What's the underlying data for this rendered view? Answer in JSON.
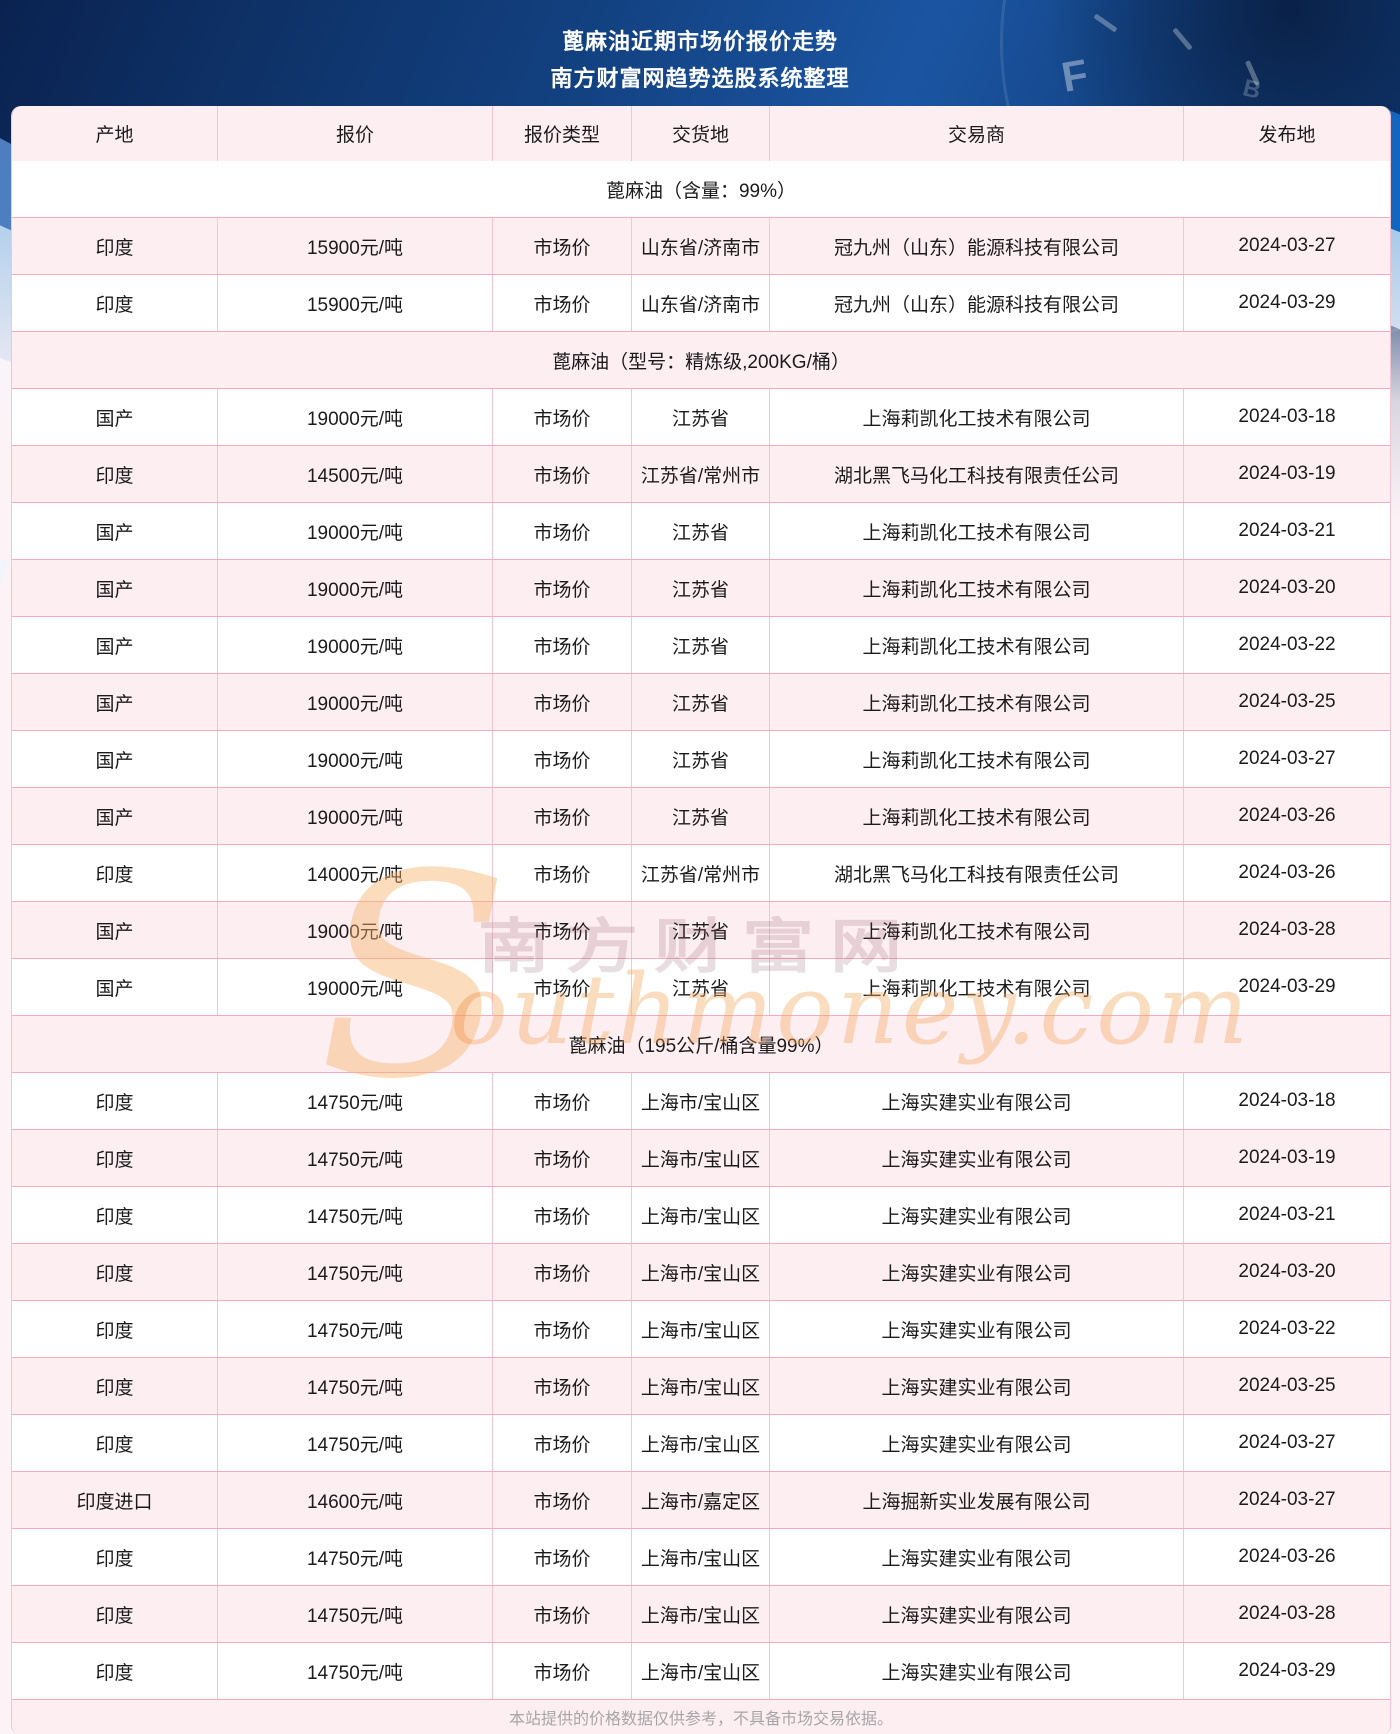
{
  "header": {
    "title_line1": "蓖麻油近期市场价报价走势",
    "title_line2": "南方财富网趋势选股系统整理"
  },
  "watermark": {
    "s": "S",
    "cjk": "南方财富网",
    "script": "outhmoney.com"
  },
  "footer": {
    "note": "本站提供的价格数据仅供参考，不具备市场交易依据。"
  },
  "colors": {
    "header_blue_dark": "#0a2250",
    "header_blue_mid": "#1b55a2",
    "row_pink": "#fdeef2",
    "row_white": "#ffffff",
    "line_pink": "#f2abc0",
    "page_bg": "#fdf3f6",
    "watermark_orange": "#f6b46e",
    "footer_text_gray": "#a6a6a6"
  },
  "table": {
    "columns": [
      "产地",
      "报价",
      "报价类型",
      "交货地",
      "交易商",
      "发布地"
    ],
    "rows": [
      {
        "type": "section",
        "label": "蓖麻油（含量：99%）"
      },
      {
        "type": "data",
        "cells": [
          "印度",
          "15900元/吨",
          "市场价",
          "山东省/济南市",
          "冠九州（山东）能源科技有限公司",
          "2024-03-27"
        ]
      },
      {
        "type": "data",
        "cells": [
          "印度",
          "15900元/吨",
          "市场价",
          "山东省/济南市",
          "冠九州（山东）能源科技有限公司",
          "2024-03-29"
        ]
      },
      {
        "type": "section",
        "label": "蓖麻油（型号：精炼级,200KG/桶）"
      },
      {
        "type": "data",
        "cells": [
          "国产",
          "19000元/吨",
          "市场价",
          "江苏省",
          "上海莉凯化工技术有限公司",
          "2024-03-18"
        ]
      },
      {
        "type": "data",
        "cells": [
          "印度",
          "14500元/吨",
          "市场价",
          "江苏省/常州市",
          "湖北黑飞马化工科技有限责任公司",
          "2024-03-19"
        ]
      },
      {
        "type": "data",
        "cells": [
          "国产",
          "19000元/吨",
          "市场价",
          "江苏省",
          "上海莉凯化工技术有限公司",
          "2024-03-21"
        ]
      },
      {
        "type": "data",
        "cells": [
          "国产",
          "19000元/吨",
          "市场价",
          "江苏省",
          "上海莉凯化工技术有限公司",
          "2024-03-20"
        ]
      },
      {
        "type": "data",
        "cells": [
          "国产",
          "19000元/吨",
          "市场价",
          "江苏省",
          "上海莉凯化工技术有限公司",
          "2024-03-22"
        ]
      },
      {
        "type": "data",
        "cells": [
          "国产",
          "19000元/吨",
          "市场价",
          "江苏省",
          "上海莉凯化工技术有限公司",
          "2024-03-25"
        ]
      },
      {
        "type": "data",
        "cells": [
          "国产",
          "19000元/吨",
          "市场价",
          "江苏省",
          "上海莉凯化工技术有限公司",
          "2024-03-27"
        ]
      },
      {
        "type": "data",
        "cells": [
          "国产",
          "19000元/吨",
          "市场价",
          "江苏省",
          "上海莉凯化工技术有限公司",
          "2024-03-26"
        ]
      },
      {
        "type": "data",
        "cells": [
          "印度",
          "14000元/吨",
          "市场价",
          "江苏省/常州市",
          "湖北黑飞马化工科技有限责任公司",
          "2024-03-26"
        ]
      },
      {
        "type": "data",
        "cells": [
          "国产",
          "19000元/吨",
          "市场价",
          "江苏省",
          "上海莉凯化工技术有限公司",
          "2024-03-28"
        ]
      },
      {
        "type": "data",
        "cells": [
          "国产",
          "19000元/吨",
          "市场价",
          "江苏省",
          "上海莉凯化工技术有限公司",
          "2024-03-29"
        ]
      },
      {
        "type": "section",
        "label": "蓖麻油（195公斤/桶含量99%）"
      },
      {
        "type": "data",
        "cells": [
          "印度",
          "14750元/吨",
          "市场价",
          "上海市/宝山区",
          "上海实建实业有限公司",
          "2024-03-18"
        ]
      },
      {
        "type": "data",
        "cells": [
          "印度",
          "14750元/吨",
          "市场价",
          "上海市/宝山区",
          "上海实建实业有限公司",
          "2024-03-19"
        ]
      },
      {
        "type": "data",
        "cells": [
          "印度",
          "14750元/吨",
          "市场价",
          "上海市/宝山区",
          "上海实建实业有限公司",
          "2024-03-21"
        ]
      },
      {
        "type": "data",
        "cells": [
          "印度",
          "14750元/吨",
          "市场价",
          "上海市/宝山区",
          "上海实建实业有限公司",
          "2024-03-20"
        ]
      },
      {
        "type": "data",
        "cells": [
          "印度",
          "14750元/吨",
          "市场价",
          "上海市/宝山区",
          "上海实建实业有限公司",
          "2024-03-22"
        ]
      },
      {
        "type": "data",
        "cells": [
          "印度",
          "14750元/吨",
          "市场价",
          "上海市/宝山区",
          "上海实建实业有限公司",
          "2024-03-25"
        ]
      },
      {
        "type": "data",
        "cells": [
          "印度",
          "14750元/吨",
          "市场价",
          "上海市/宝山区",
          "上海实建实业有限公司",
          "2024-03-27"
        ]
      },
      {
        "type": "data",
        "cells": [
          "印度进口",
          "14600元/吨",
          "市场价",
          "上海市/嘉定区",
          "上海掘新实业发展有限公司",
          "2024-03-27"
        ]
      },
      {
        "type": "data",
        "cells": [
          "印度",
          "14750元/吨",
          "市场价",
          "上海市/宝山区",
          "上海实建实业有限公司",
          "2024-03-26"
        ]
      },
      {
        "type": "data",
        "cells": [
          "印度",
          "14750元/吨",
          "市场价",
          "上海市/宝山区",
          "上海实建实业有限公司",
          "2024-03-28"
        ]
      },
      {
        "type": "data",
        "cells": [
          "印度",
          "14750元/吨",
          "市场价",
          "上海市/宝山区",
          "上海实建实业有限公司",
          "2024-03-29"
        ]
      }
    ]
  }
}
